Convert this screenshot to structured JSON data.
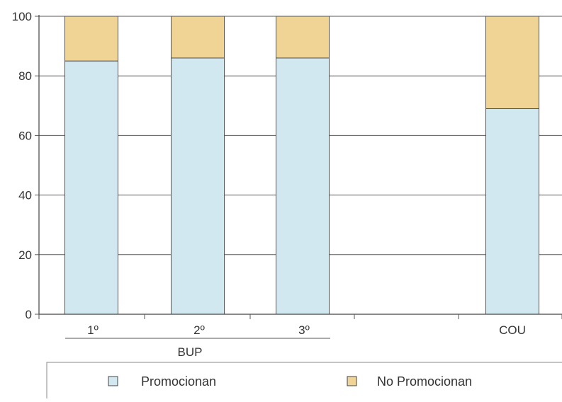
{
  "chart_data": {
    "type": "bar",
    "stacked": true,
    "categories": [
      "1º",
      "2º",
      "3º",
      "COU"
    ],
    "group_label": "BUP",
    "group_members": [
      "1º",
      "2º",
      "3º"
    ],
    "series": [
      {
        "name": "Promocionan",
        "values": [
          85,
          86,
          86,
          69
        ],
        "color": "#d2e8f0"
      },
      {
        "name": "No Promocionan",
        "values": [
          15,
          14,
          14,
          31
        ],
        "color": "#efd496"
      }
    ],
    "ylim": [
      0,
      100
    ],
    "yticks": [
      0,
      20,
      40,
      60,
      80,
      100
    ],
    "grid": true,
    "legend_position": "bottom"
  }
}
